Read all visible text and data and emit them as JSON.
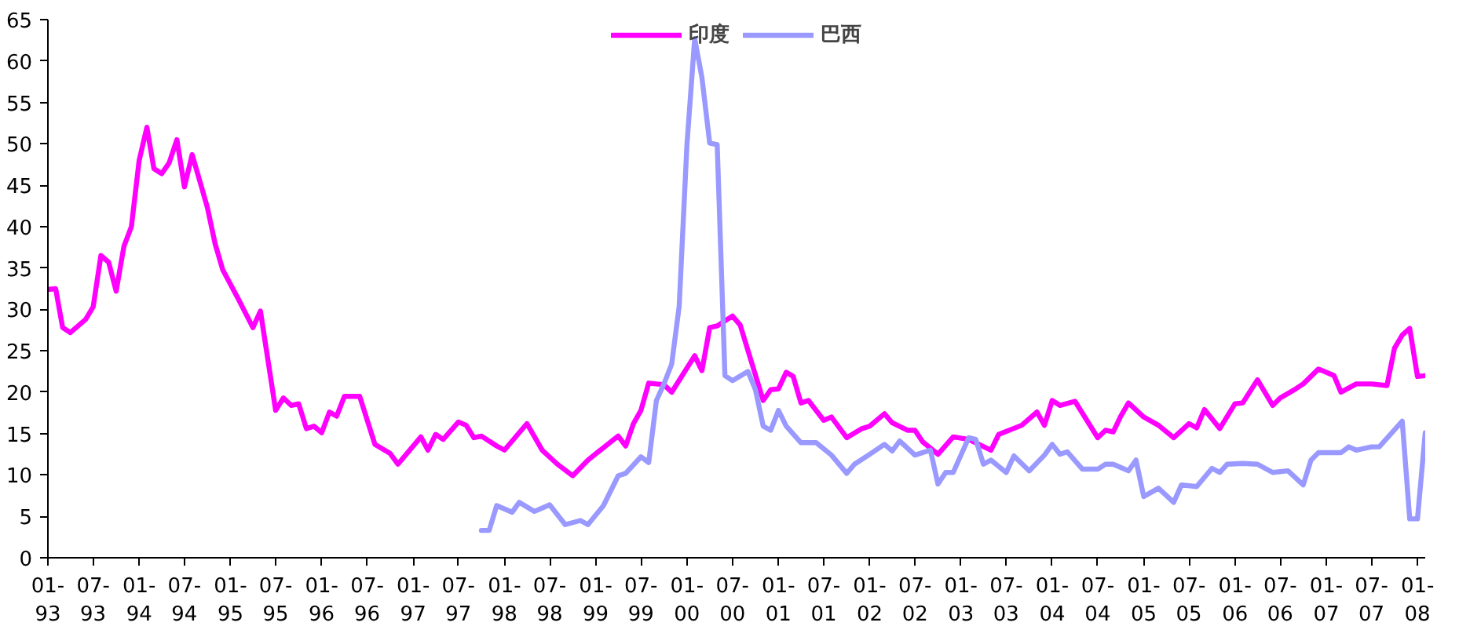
{
  "chart_data": {
    "type": "line",
    "legend": "top",
    "grid": false,
    "marker": "none",
    "line_style": "solid",
    "xlim": [
      "1993-01",
      "2008-02"
    ],
    "ylim": [
      0,
      65
    ],
    "yticks": [
      0,
      5,
      10,
      15,
      20,
      25,
      30,
      35,
      40,
      45,
      50,
      55,
      60,
      65
    ],
    "xticks": [
      {
        "value": "1993-01",
        "label": "01-\n93"
      },
      {
        "value": "1993-07",
        "label": "07-\n93"
      },
      {
        "value": "1994-01",
        "label": "01-\n94"
      },
      {
        "value": "1994-07",
        "label": "07-\n94"
      },
      {
        "value": "1995-01",
        "label": "01-\n95"
      },
      {
        "value": "1995-07",
        "label": "07-\n95"
      },
      {
        "value": "1996-01",
        "label": "01-\n96"
      },
      {
        "value": "1996-07",
        "label": "07-\n96"
      },
      {
        "value": "1997-01",
        "label": "01-\n97"
      },
      {
        "value": "1997-07",
        "label": "07-\n97"
      },
      {
        "value": "1998-01",
        "label": "01-\n98"
      },
      {
        "value": "1998-07",
        "label": "07-\n98"
      },
      {
        "value": "1999-01",
        "label": "01-\n99"
      },
      {
        "value": "1999-07",
        "label": "07-\n99"
      },
      {
        "value": "2000-01",
        "label": "01-\n00"
      },
      {
        "value": "2000-07",
        "label": "07-\n00"
      },
      {
        "value": "2001-01",
        "label": "01-\n01"
      },
      {
        "value": "2001-07",
        "label": "07-\n01"
      },
      {
        "value": "2002-01",
        "label": "01-\n02"
      },
      {
        "value": "2002-07",
        "label": "07-\n02"
      },
      {
        "value": "2003-01",
        "label": "01-\n03"
      },
      {
        "value": "2003-07",
        "label": "07-\n03"
      },
      {
        "value": "2004-01",
        "label": "01-\n04"
      },
      {
        "value": "2004-07",
        "label": "07-\n04"
      },
      {
        "value": "2005-01",
        "label": "01-\n05"
      },
      {
        "value": "2005-07",
        "label": "07-\n05"
      },
      {
        "value": "2006-01",
        "label": "01-\n06"
      },
      {
        "value": "2006-07",
        "label": "07-\n06"
      },
      {
        "value": "2007-01",
        "label": "01-\n07"
      },
      {
        "value": "2007-07",
        "label": "07-\n07"
      },
      {
        "value": "2008-01",
        "label": "01-\n08"
      }
    ],
    "series": [
      {
        "name": "印度",
        "color": "#ff00ff",
        "x": [
          "1993-01",
          "1993-02",
          "1993-03",
          "1993-04",
          "1993-06",
          "1993-07",
          "1993-08",
          "1993-09",
          "1993-10",
          "1993-11",
          "1993-12",
          "1994-01",
          "1994-02",
          "1994-03",
          "1994-04",
          "1994-05",
          "1994-06",
          "1994-07",
          "1994-08",
          "1994-10",
          "1994-11",
          "1994-12",
          "1995-02",
          "1995-04",
          "1995-05",
          "1995-07",
          "1995-08",
          "1995-09",
          "1995-10",
          "1995-11",
          "1995-12",
          "1996-01",
          "1996-02",
          "1996-03",
          "1996-04",
          "1996-06",
          "1996-08",
          "1996-10",
          "1996-11",
          "1997-02",
          "1997-03",
          "1997-04",
          "1997-05",
          "1997-07",
          "1997-08",
          "1997-09",
          "1997-10",
          "1997-12",
          "1998-01",
          "1998-04",
          "1998-06",
          "1998-08",
          "1998-10",
          "1998-12",
          "1999-02",
          "1999-04",
          "1999-05",
          "1999-06",
          "1999-07",
          "1999-08",
          "1999-10",
          "1999-11",
          "2000-02",
          "2000-03",
          "2000-04",
          "2000-05",
          "2000-07",
          "2000-08",
          "2000-11",
          "2000-12",
          "2001-01",
          "2001-02",
          "2001-03",
          "2001-04",
          "2001-05",
          "2001-07",
          "2001-08",
          "2001-10",
          "2001-12",
          "2002-01",
          "2002-03",
          "2002-04",
          "2002-06",
          "2002-07",
          "2002-08",
          "2002-10",
          "2002-12",
          "2003-02",
          "2003-05",
          "2003-06",
          "2003-09",
          "2003-11",
          "2003-12",
          "2004-01",
          "2004-02",
          "2004-04",
          "2004-07",
          "2004-08",
          "2004-09",
          "2004-10",
          "2004-11",
          "2005-01",
          "2005-03",
          "2005-05",
          "2005-07",
          "2005-08",
          "2005-09",
          "2005-11",
          "2006-01",
          "2006-02",
          "2006-04",
          "2006-06",
          "2006-07",
          "2006-09",
          "2006-10",
          "2006-12",
          "2007-02",
          "2007-03",
          "2007-05",
          "2007-07",
          "2007-09",
          "2007-10",
          "2007-11",
          "2007-12",
          "2008-01",
          "2008-02"
        ],
        "values": [
          32.4,
          32.5,
          27.8,
          27.2,
          28.8,
          30.3,
          36.5,
          35.7,
          32.2,
          37.6,
          40,
          48,
          52,
          47,
          46.4,
          47.7,
          50.5,
          44.8,
          48.7,
          42.3,
          37.9,
          34.8,
          31.3,
          27.8,
          29.8,
          17.8,
          19.3,
          18.4,
          18.6,
          15.6,
          15.9,
          15.1,
          17.6,
          17.1,
          19.5,
          19.5,
          13.7,
          12.6,
          11.3,
          14.6,
          13,
          14.9,
          14.3,
          16.4,
          16,
          14.5,
          14.7,
          13.5,
          13,
          16.2,
          13,
          11.3,
          9.9,
          11.8,
          13.3,
          14.7,
          13.5,
          16.2,
          17.8,
          21.1,
          20.9,
          20,
          24.4,
          22.6,
          27.8,
          28,
          29.2,
          28.1,
          19,
          20.3,
          20.4,
          22.4,
          21.9,
          18.7,
          19,
          16.6,
          17,
          14.5,
          15.6,
          15.9,
          17.4,
          16.3,
          15.4,
          15.4,
          14,
          12.5,
          14.6,
          14.3,
          13,
          14.9,
          16,
          17.6,
          16,
          19,
          18.4,
          18.9,
          14.5,
          15.4,
          15.2,
          17.1,
          18.7,
          17,
          16,
          14.5,
          16.2,
          15.7,
          17.9,
          15.6,
          18.6,
          18.7,
          21.5,
          18.4,
          19.3,
          20.4,
          21,
          22.8,
          22,
          20,
          21,
          21,
          20.8,
          25.3,
          26.9,
          27.7,
          21.9,
          22
        ]
      },
      {
        "name": "巴西",
        "color": "#9999ff",
        "x": [
          "1997-10",
          "1997-11",
          "1997-12",
          "1998-02",
          "1998-03",
          "1998-05",
          "1998-07",
          "1998-09",
          "1998-11",
          "1998-12",
          "1999-02",
          "1999-04",
          "1999-05",
          "1999-07",
          "1999-08",
          "1999-09",
          "1999-10",
          "1999-11",
          "1999-12",
          "2000-01",
          "2000-02",
          "2000-03",
          "2000-04",
          "2000-05",
          "2000-06",
          "2000-07",
          "2000-09",
          "2000-10",
          "2000-11",
          "2000-12",
          "2001-01",
          "2001-02",
          "2001-04",
          "2001-06",
          "2001-08",
          "2001-10",
          "2001-11",
          "2002-01",
          "2002-03",
          "2002-04",
          "2002-05",
          "2002-07",
          "2002-09",
          "2002-10",
          "2002-11",
          "2002-12",
          "2003-02",
          "2003-03",
          "2003-04",
          "2003-05",
          "2003-07",
          "2003-08",
          "2003-10",
          "2003-12",
          "2004-01",
          "2004-02",
          "2004-03",
          "2004-05",
          "2004-07",
          "2004-08",
          "2004-09",
          "2004-11",
          "2004-12",
          "2005-01",
          "2005-03",
          "2005-05",
          "2005-06",
          "2005-08",
          "2005-10",
          "2005-11",
          "2005-12",
          "2006-02",
          "2006-04",
          "2006-06",
          "2006-08",
          "2006-10",
          "2006-11",
          "2006-12",
          "2007-03",
          "2007-04",
          "2007-05",
          "2007-07",
          "2007-08",
          "2007-11",
          "2007-12",
          "2008-01",
          "2008-02"
        ],
        "values": [
          3.3,
          3.3,
          6.3,
          5.5,
          6.7,
          5.6,
          6.4,
          4,
          4.5,
          4,
          6.3,
          9.9,
          10.2,
          12.2,
          11.5,
          19,
          21,
          23.4,
          30.4,
          49.9,
          62.7,
          58,
          50.1,
          49.9,
          22,
          21.4,
          22.5,
          20.3,
          15.9,
          15.4,
          17.8,
          15.9,
          13.9,
          13.9,
          12.4,
          10.2,
          11.3,
          12.5,
          13.7,
          12.9,
          14.1,
          12.4,
          13,
          8.9,
          10.3,
          10.3,
          14.5,
          14.3,
          11.3,
          11.8,
          10.3,
          12.3,
          10.5,
          12.4,
          13.7,
          12.5,
          12.8,
          10.7,
          10.7,
          11.3,
          11.3,
          10.5,
          11.8,
          7.4,
          8.4,
          6.7,
          8.8,
          8.6,
          10.8,
          10.3,
          11.3,
          11.4,
          11.3,
          10.3,
          10.5,
          8.8,
          11.8,
          12.7,
          12.7,
          13.4,
          13,
          13.4,
          13.4,
          16.5,
          4.7,
          4.7,
          15.1
        ]
      }
    ]
  }
}
